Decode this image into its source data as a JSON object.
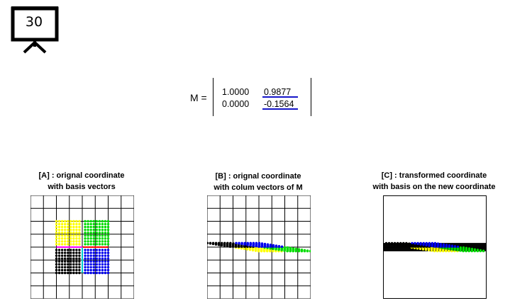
{
  "slide": {
    "number": "30",
    "icon": "presentation-board-icon"
  },
  "matrix": {
    "label": "M =",
    "row1": [
      "1.0000",
      "0.9877"
    ],
    "row2": [
      "0.0000",
      "-0.1564"
    ],
    "column_vectors": {
      "col1": [
        1.0,
        0.0
      ],
      "col2": [
        0.9877,
        -0.1564
      ]
    },
    "highlight_color": "#1515c8"
  },
  "panels": [
    {
      "title_line1": "[A] : orignal coordinate",
      "title_line2": "with basis vectors"
    },
    {
      "title_line1": "[B] : orignal coordinate",
      "title_line2": "with colum vectors of M"
    },
    {
      "title_line1": "[C] : transformed coordinate",
      "title_line2": "with basis on the new coordinate"
    }
  ],
  "colors": {
    "quadrant_top_left": "#ffff00",
    "quadrant_top_right": "#00dd00",
    "quadrant_bottom_left": "#000000",
    "quadrant_bottom_right": "#0000ee",
    "basis_x": "#ff0000",
    "basis_y": "#00cccc",
    "basis_center": "#ff00ff"
  }
}
